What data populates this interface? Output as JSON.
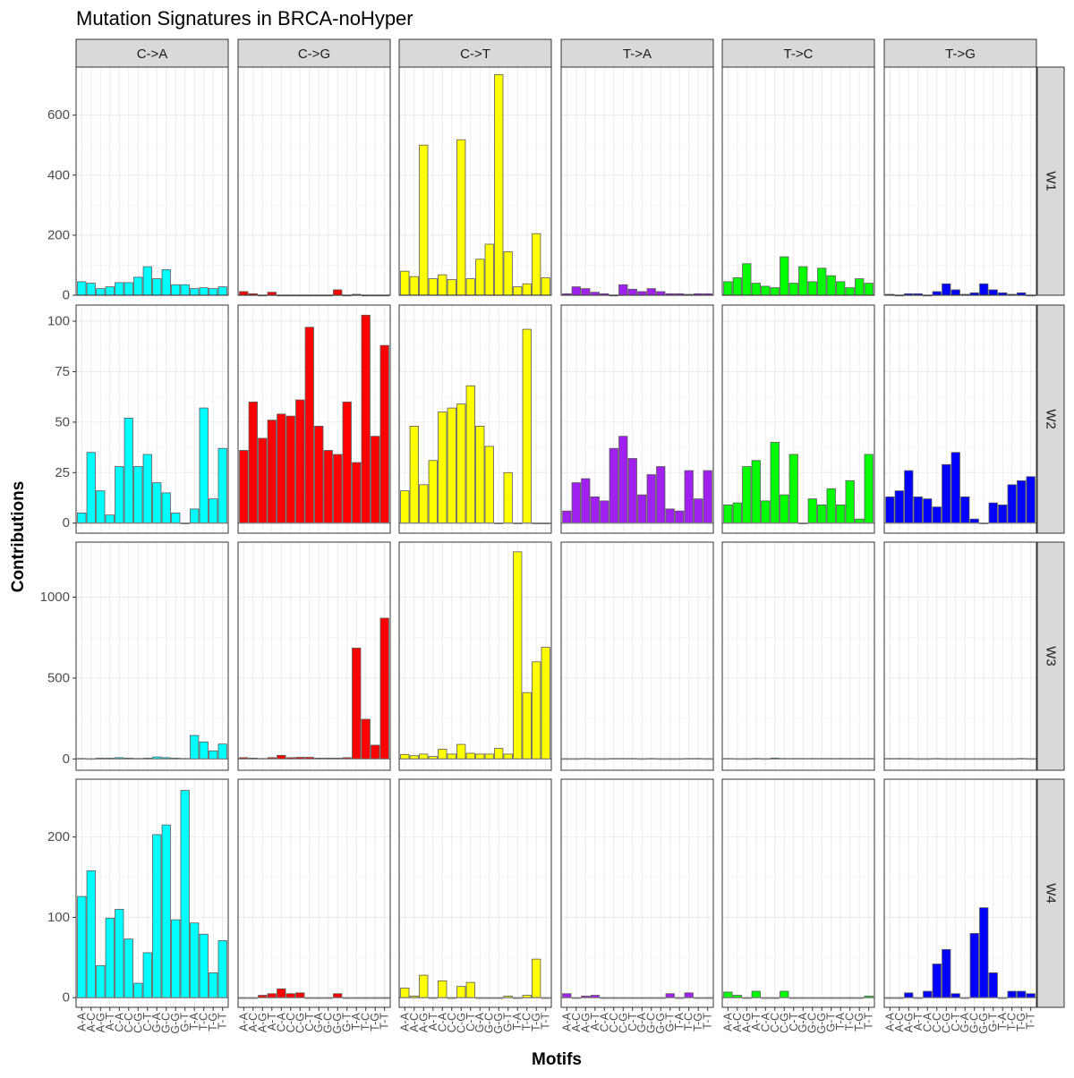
{
  "chart_data": {
    "type": "bar",
    "title": "Mutation Signatures in BRCA-noHyper",
    "xlabel": "Motifs",
    "ylabel": "Contributions",
    "grid": true,
    "facet_columns": [
      "C->A",
      "C->G",
      "C->T",
      "T->A",
      "T->C",
      "T->G"
    ],
    "facet_rows": [
      "W1",
      "W2",
      "W3",
      "W4"
    ],
    "motifs": [
      "A-A",
      "A-C",
      "A-G",
      "A-T",
      "C-A",
      "C-C",
      "C-G",
      "C-T",
      "G-A",
      "G-C",
      "G-G",
      "G-T",
      "T-A",
      "T-C",
      "T-G",
      "T-T"
    ],
    "colors": {
      "C->A": "#00FFFF",
      "C->G": "#FF0000",
      "C->T": "#FFFF00",
      "T->A": "#A020F0",
      "T->C": "#00FF00",
      "T->G": "#0000FF"
    },
    "rows": [
      {
        "name": "W1",
        "ylim": [
          0,
          760
        ],
        "yticks": [
          0,
          200,
          400,
          600
        ],
        "series": [
          {
            "name": "C->A",
            "values": [
              45,
              40,
              22,
              28,
              42,
              42,
              60,
              95,
              55,
              85,
              35,
              35,
              22,
              25,
              22,
              28
            ]
          },
          {
            "name": "C->G",
            "values": [
              12,
              5,
              0,
              10,
              0,
              0,
              0,
              0,
              0,
              0,
              18,
              0,
              3,
              0,
              0,
              0
            ]
          },
          {
            "name": "C->T",
            "values": [
              80,
              62,
              500,
              55,
              68,
              52,
              518,
              55,
              120,
              170,
              735,
              145,
              28,
              38,
              205,
              58
            ]
          },
          {
            "name": "T->A",
            "values": [
              5,
              28,
              22,
              10,
              5,
              0,
              35,
              20,
              12,
              22,
              12,
              5,
              5,
              3,
              5,
              5
            ]
          },
          {
            "name": "T->C",
            "values": [
              45,
              58,
              105,
              40,
              30,
              25,
              128,
              40,
              95,
              45,
              90,
              65,
              45,
              25,
              55,
              40
            ]
          },
          {
            "name": "T->G",
            "values": [
              3,
              0,
              5,
              5,
              0,
              12,
              38,
              18,
              3,
              8,
              38,
              18,
              8,
              3,
              8,
              0
            ]
          }
        ]
      },
      {
        "name": "W2",
        "ylim": [
          -5,
          108
        ],
        "yticks": [
          0,
          25,
          50,
          75,
          100
        ],
        "series": [
          {
            "name": "C->A",
            "values": [
              5,
              35,
              16,
              4,
              28,
              52,
              28,
              34,
              20,
              15,
              5,
              0,
              7,
              57,
              12,
              37
            ]
          },
          {
            "name": "C->G",
            "values": [
              36,
              60,
              42,
              51,
              54,
              53,
              61,
              97,
              48,
              36,
              34,
              60,
              30,
              103,
              43,
              88
            ]
          },
          {
            "name": "C->T",
            "values": [
              16,
              48,
              19,
              31,
              55,
              57,
              59,
              68,
              48,
              38,
              0,
              25,
              0,
              96,
              0,
              0
            ]
          },
          {
            "name": "T->A",
            "values": [
              6,
              20,
              22,
              13,
              11,
              37,
              43,
              32,
              14,
              24,
              28,
              7,
              6,
              26,
              12,
              26
            ]
          },
          {
            "name": "T->C",
            "values": [
              9,
              10,
              28,
              31,
              11,
              40,
              14,
              34,
              0,
              12,
              9,
              17,
              9,
              21,
              2,
              34
            ]
          },
          {
            "name": "T->G",
            "values": [
              13,
              16,
              26,
              13,
              12,
              8,
              29,
              35,
              13,
              2,
              0,
              10,
              9,
              19,
              21,
              23
            ]
          }
        ]
      },
      {
        "name": "W3",
        "ylim": [
          -70,
          1340
        ],
        "yticks": [
          0,
          500,
          1000
        ],
        "series": [
          {
            "name": "C->A",
            "values": [
              3,
              2,
              5,
              5,
              8,
              5,
              3,
              5,
              12,
              8,
              5,
              3,
              145,
              105,
              50,
              92
            ]
          },
          {
            "name": "C->G",
            "values": [
              8,
              5,
              3,
              8,
              22,
              8,
              10,
              10,
              5,
              5,
              5,
              8,
              685,
              245,
              85,
              870
            ]
          },
          {
            "name": "C->T",
            "values": [
              28,
              20,
              30,
              15,
              60,
              30,
              90,
              35,
              30,
              30,
              65,
              30,
              1280,
              410,
              600,
              690
            ]
          },
          {
            "name": "T->A",
            "values": [
              2,
              2,
              3,
              2,
              2,
              3,
              3,
              3,
              2,
              3,
              2,
              2,
              2,
              3,
              3,
              2
            ]
          },
          {
            "name": "T->C",
            "values": [
              3,
              2,
              2,
              3,
              2,
              5,
              3,
              3,
              3,
              3,
              3,
              3,
              3,
              3,
              3,
              3
            ]
          },
          {
            "name": "T->G",
            "values": [
              3,
              3,
              3,
              2,
              2,
              3,
              2,
              2,
              2,
              2,
              2,
              2,
              2,
              2,
              3,
              2
            ]
          }
        ]
      },
      {
        "name": "W4",
        "ylim": [
          -12,
          272
        ],
        "yticks": [
          0,
          100,
          200
        ],
        "series": [
          {
            "name": "C->A",
            "values": [
              126,
              158,
              40,
              99,
              110,
              73,
              18,
              56,
              203,
              215,
              97,
              258,
              93,
              79,
              31,
              71
            ]
          },
          {
            "name": "C->G",
            "values": [
              0,
              0,
              3,
              5,
              11,
              5,
              6,
              0,
              0,
              0,
              5,
              0,
              0,
              0,
              0,
              0
            ]
          },
          {
            "name": "C->T",
            "values": [
              12,
              2,
              28,
              0,
              21,
              0,
              14,
              19,
              0,
              0,
              0,
              2,
              0,
              3,
              48,
              0
            ]
          },
          {
            "name": "T->A",
            "values": [
              5,
              0,
              2,
              3,
              0,
              0,
              0,
              0,
              0,
              0,
              0,
              5,
              0,
              6,
              0,
              0
            ]
          },
          {
            "name": "T->C",
            "values": [
              7,
              3,
              0,
              8,
              0,
              0,
              8,
              0,
              0,
              0,
              0,
              0,
              0,
              0,
              0,
              2
            ]
          },
          {
            "name": "T->G",
            "values": [
              0,
              0,
              6,
              0,
              8,
              42,
              60,
              5,
              0,
              80,
              112,
              31,
              0,
              8,
              8,
              5
            ]
          }
        ]
      }
    ]
  }
}
